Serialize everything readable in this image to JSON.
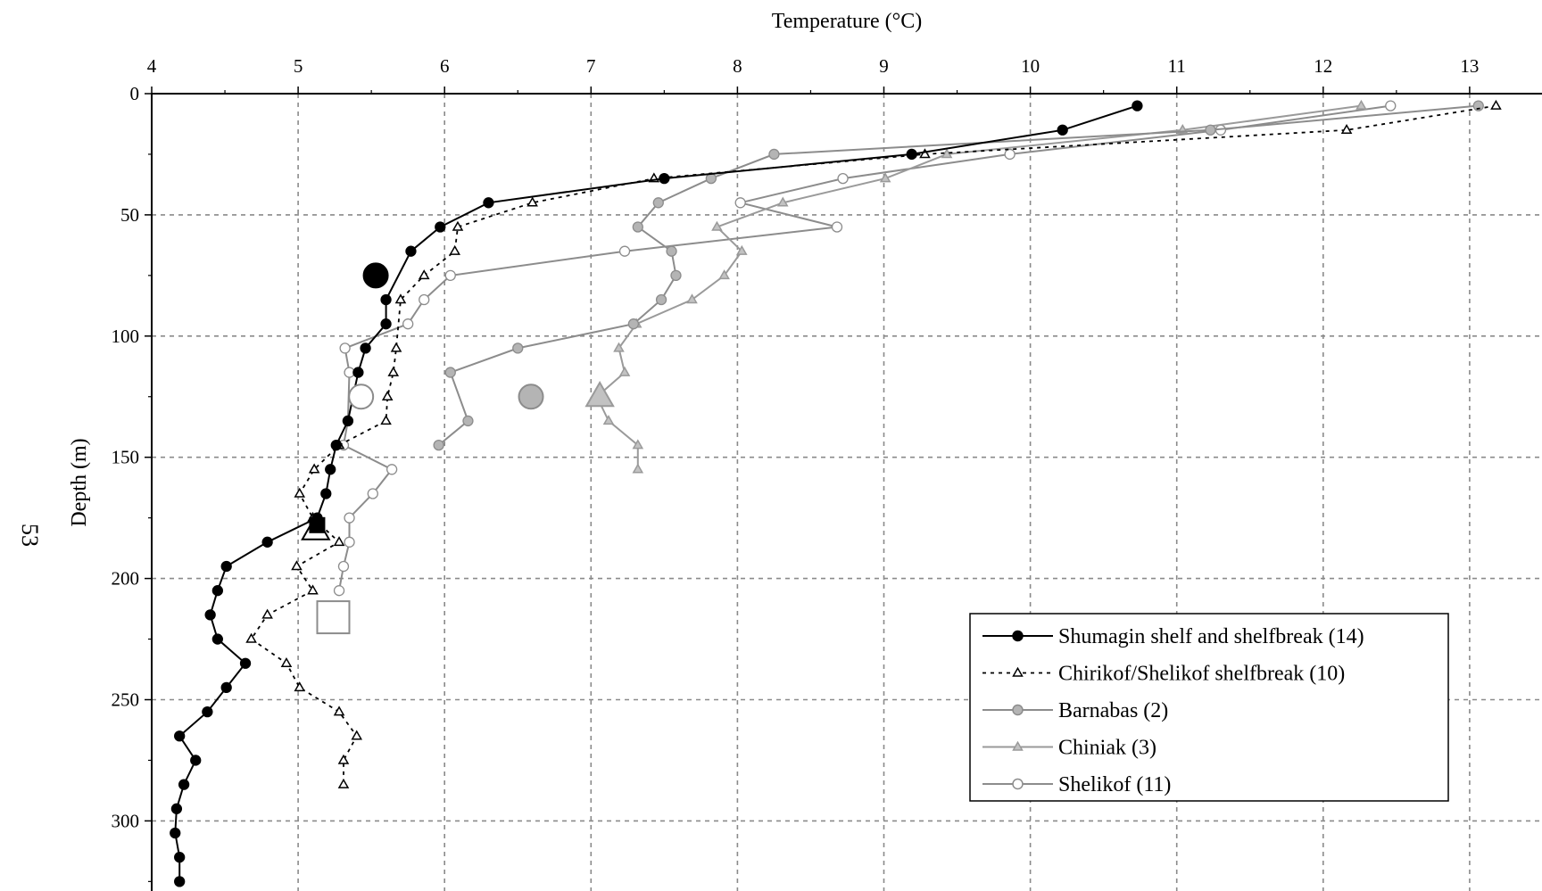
{
  "page": {
    "number": "53"
  },
  "chart_data": {
    "type": "line",
    "xlabel": "Temperature (°C)",
    "ylabel": "Depth (m)",
    "xlim": [
      4,
      13.5
    ],
    "ylim": [
      0,
      328
    ],
    "y_inverted": true,
    "x_axis_position": "top",
    "x_ticks": [
      4,
      5,
      6,
      7,
      8,
      9,
      10,
      11,
      12,
      13
    ],
    "y_ticks": [
      0,
      50,
      100,
      150,
      200,
      250,
      300
    ],
    "grid": "dashed",
    "legend_position": "lower-right",
    "series": [
      {
        "name": "Shumagin shelf and shelfbreak (14)",
        "color": "#000000",
        "marker": "circle",
        "marker_fill": "#000000",
        "dash": false,
        "points": [
          [
            10.73,
            5
          ],
          [
            10.22,
            15
          ],
          [
            9.19,
            25
          ],
          [
            7.5,
            35
          ],
          [
            6.3,
            45
          ],
          [
            5.97,
            55
          ],
          [
            5.77,
            65
          ],
          [
            5.6,
            85
          ],
          [
            5.6,
            95
          ],
          [
            5.46,
            105
          ],
          [
            5.41,
            115
          ],
          [
            5.34,
            135
          ],
          [
            5.26,
            145
          ],
          [
            5.22,
            155
          ],
          [
            5.19,
            165
          ],
          [
            5.13,
            175
          ],
          [
            4.79,
            185
          ],
          [
            4.51,
            195
          ],
          [
            4.45,
            205
          ],
          [
            4.4,
            215
          ],
          [
            4.45,
            225
          ],
          [
            4.64,
            235
          ],
          [
            4.51,
            245
          ],
          [
            4.38,
            255
          ],
          [
            4.19,
            265
          ],
          [
            4.3,
            275
          ],
          [
            4.22,
            285
          ],
          [
            4.17,
            295
          ],
          [
            4.16,
            305
          ],
          [
            4.19,
            315
          ],
          [
            4.19,
            325
          ]
        ],
        "mean_point": [
          5.53,
          75
        ],
        "mean_marker": "circle"
      },
      {
        "name": "Chirikof/Shelikof shelfbreak (10)",
        "color": "#000000",
        "marker": "triangle",
        "marker_fill": "#ffffff",
        "dash": true,
        "points": [
          [
            13.18,
            5
          ],
          [
            12.16,
            15
          ],
          [
            9.28,
            25
          ],
          [
            7.43,
            35
          ],
          [
            6.6,
            45
          ],
          [
            6.09,
            55
          ],
          [
            6.07,
            65
          ],
          [
            5.86,
            75
          ],
          [
            5.7,
            85
          ],
          [
            5.67,
            105
          ],
          [
            5.65,
            115
          ],
          [
            5.61,
            125
          ],
          [
            5.6,
            135
          ],
          [
            5.28,
            145
          ],
          [
            5.11,
            155
          ],
          [
            5.01,
            165
          ],
          [
            5.1,
            175
          ],
          [
            5.28,
            185
          ],
          [
            4.99,
            195
          ],
          [
            5.1,
            205
          ],
          [
            4.79,
            215
          ],
          [
            4.68,
            225
          ],
          [
            4.92,
            235
          ],
          [
            5.01,
            245
          ],
          [
            5.28,
            255
          ],
          [
            5.4,
            265
          ],
          [
            5.31,
            275
          ],
          [
            5.31,
            285
          ]
        ],
        "mean_point": [
          5.12,
          180
        ],
        "mean_marker": "triangle"
      },
      {
        "name": "Barnabas (2)",
        "color": "#8c8c8c",
        "marker": "circle",
        "marker_fill": "#b4b4b4",
        "dash": false,
        "points": [
          [
            13.06,
            5
          ],
          [
            11.23,
            15
          ],
          [
            8.25,
            25
          ],
          [
            7.82,
            35
          ],
          [
            7.46,
            45
          ],
          [
            7.32,
            55
          ],
          [
            7.55,
            65
          ],
          [
            7.58,
            75
          ],
          [
            7.48,
            85
          ],
          [
            7.29,
            95
          ],
          [
            6.5,
            105
          ],
          [
            6.04,
            115
          ],
          [
            6.16,
            135
          ],
          [
            5.96,
            145
          ]
        ],
        "mean_point": [
          6.59,
          125
        ],
        "mean_marker": "circle"
      },
      {
        "name": "Chiniak (3)",
        "color": "#9a9a9a",
        "marker": "triangle",
        "marker_fill": "#c2c2c2",
        "dash": false,
        "points": [
          [
            12.26,
            5
          ],
          [
            11.04,
            15
          ],
          [
            9.43,
            25
          ],
          [
            9.01,
            35
          ],
          [
            8.31,
            45
          ],
          [
            7.86,
            55
          ],
          [
            8.03,
            65
          ],
          [
            7.91,
            75
          ],
          [
            7.69,
            85
          ],
          [
            7.31,
            95
          ],
          [
            7.19,
            105
          ],
          [
            7.23,
            115
          ],
          [
            7.04,
            125
          ],
          [
            7.12,
            135
          ],
          [
            7.32,
            145
          ],
          [
            7.32,
            155
          ]
        ],
        "mean_point": [
          7.06,
          125
        ],
        "mean_marker": "triangle"
      },
      {
        "name": "Shelikof (11)",
        "color": "#8c8c8c",
        "marker": "circle",
        "marker_fill": "#ffffff",
        "dash": false,
        "points": [
          [
            12.46,
            5
          ],
          [
            11.3,
            15
          ],
          [
            9.86,
            25
          ],
          [
            8.72,
            35
          ],
          [
            8.02,
            45
          ],
          [
            8.68,
            55
          ],
          [
            7.23,
            65
          ],
          [
            6.04,
            75
          ],
          [
            5.86,
            85
          ],
          [
            5.75,
            95
          ],
          [
            5.32,
            105
          ],
          [
            5.35,
            115
          ],
          [
            5.34,
            135
          ],
          [
            5.31,
            145
          ],
          [
            5.64,
            155
          ],
          [
            5.51,
            165
          ],
          [
            5.35,
            175
          ],
          [
            5.35,
            185
          ],
          [
            5.31,
            195
          ],
          [
            5.28,
            205
          ]
        ],
        "mean_point": [
          5.43,
          125
        ],
        "mean_marker": "circle"
      }
    ],
    "extra_mean_markers": [
      {
        "series": "Shumagin shelf and shelfbreak (14)",
        "point": [
          5.13,
          178
        ],
        "marker": "square",
        "fill": "#000000",
        "color": "#000000",
        "size": 8
      },
      {
        "series": "Shelikof (11)",
        "point": [
          5.24,
          216
        ],
        "marker": "square",
        "fill": "#ffffff",
        "color": "#8c8c8c",
        "size": 18
      }
    ]
  }
}
